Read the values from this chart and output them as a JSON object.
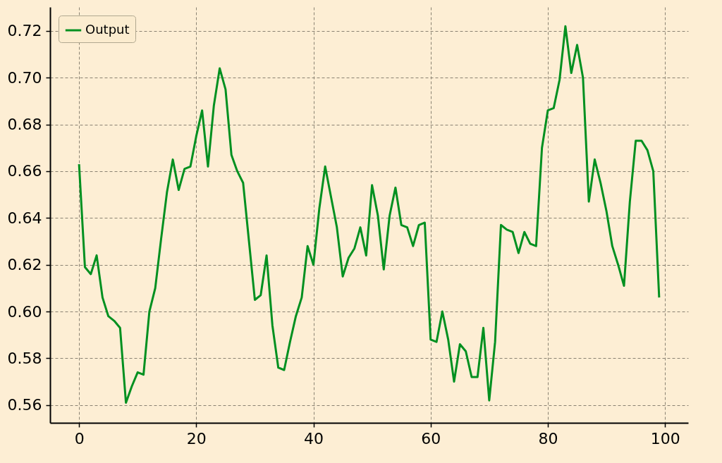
{
  "chart_data": {
    "type": "line",
    "x": [
      0,
      1,
      2,
      3,
      4,
      5,
      6,
      7,
      8,
      9,
      10,
      11,
      12,
      13,
      14,
      15,
      16,
      17,
      18,
      19,
      20,
      21,
      22,
      23,
      24,
      25,
      26,
      27,
      28,
      29,
      30,
      31,
      32,
      33,
      34,
      35,
      36,
      37,
      38,
      39,
      40,
      41,
      42,
      43,
      44,
      45,
      46,
      47,
      48,
      49,
      50,
      51,
      52,
      53,
      54,
      55,
      56,
      57,
      58,
      59,
      60,
      61,
      62,
      63,
      64,
      65,
      66,
      67,
      68,
      69,
      70,
      71,
      72,
      73,
      74,
      75,
      76,
      77,
      78,
      79,
      80,
      81,
      82,
      83,
      84,
      85,
      86,
      87,
      88,
      89,
      90,
      91,
      92,
      93,
      94,
      95,
      96,
      97,
      98,
      99
    ],
    "series": [
      {
        "name": "Output",
        "color": "#009020",
        "values": [
          0.663,
          0.619,
          0.616,
          0.624,
          0.606,
          0.598,
          0.596,
          0.593,
          0.561,
          0.568,
          0.574,
          0.573,
          0.6,
          0.61,
          0.631,
          0.651,
          0.665,
          0.652,
          0.661,
          0.662,
          0.675,
          0.686,
          0.662,
          0.688,
          0.704,
          0.695,
          0.667,
          0.66,
          0.655,
          0.63,
          0.605,
          0.607,
          0.624,
          0.594,
          0.576,
          0.575,
          0.587,
          0.598,
          0.606,
          0.628,
          0.62,
          0.644,
          0.662,
          0.649,
          0.636,
          0.615,
          0.623,
          0.627,
          0.636,
          0.624,
          0.654,
          0.641,
          0.618,
          0.641,
          0.653,
          0.637,
          0.636,
          0.628,
          0.637,
          0.638,
          0.588,
          0.587,
          0.6,
          0.588,
          0.57,
          0.586,
          0.583,
          0.572,
          0.572,
          0.593,
          0.562,
          0.587,
          0.637,
          0.635,
          0.634,
          0.625,
          0.634,
          0.629,
          0.628,
          0.67,
          0.686,
          0.687,
          0.699,
          0.722,
          0.702,
          0.714,
          0.7,
          0.647,
          0.665,
          0.655,
          0.643,
          0.628,
          0.62,
          0.611,
          0.647,
          0.673,
          0.673,
          0.669,
          0.66,
          0.606
        ]
      }
    ],
    "xlim": [
      -4.95,
      103.95
    ],
    "xticks": [
      0,
      20,
      40,
      60,
      80,
      100
    ],
    "ylim": [
      0.5524,
      0.7302
    ],
    "yticks": [
      {
        "value": 0.56,
        "label": "0.56"
      },
      {
        "value": 0.58,
        "label": "0.58"
      },
      {
        "value": 0.6,
        "label": "0.60"
      },
      {
        "value": 0.62,
        "label": "0.62"
      },
      {
        "value": 0.64,
        "label": "0.64"
      },
      {
        "value": 0.66,
        "label": "0.66"
      },
      {
        "value": 0.68,
        "label": "0.68"
      },
      {
        "value": 0.7,
        "label": "0.70"
      },
      {
        "value": 0.72,
        "label": "0.72"
      }
    ],
    "grid": true,
    "legend": "top left",
    "line_style": "solid",
    "marker": "none"
  }
}
